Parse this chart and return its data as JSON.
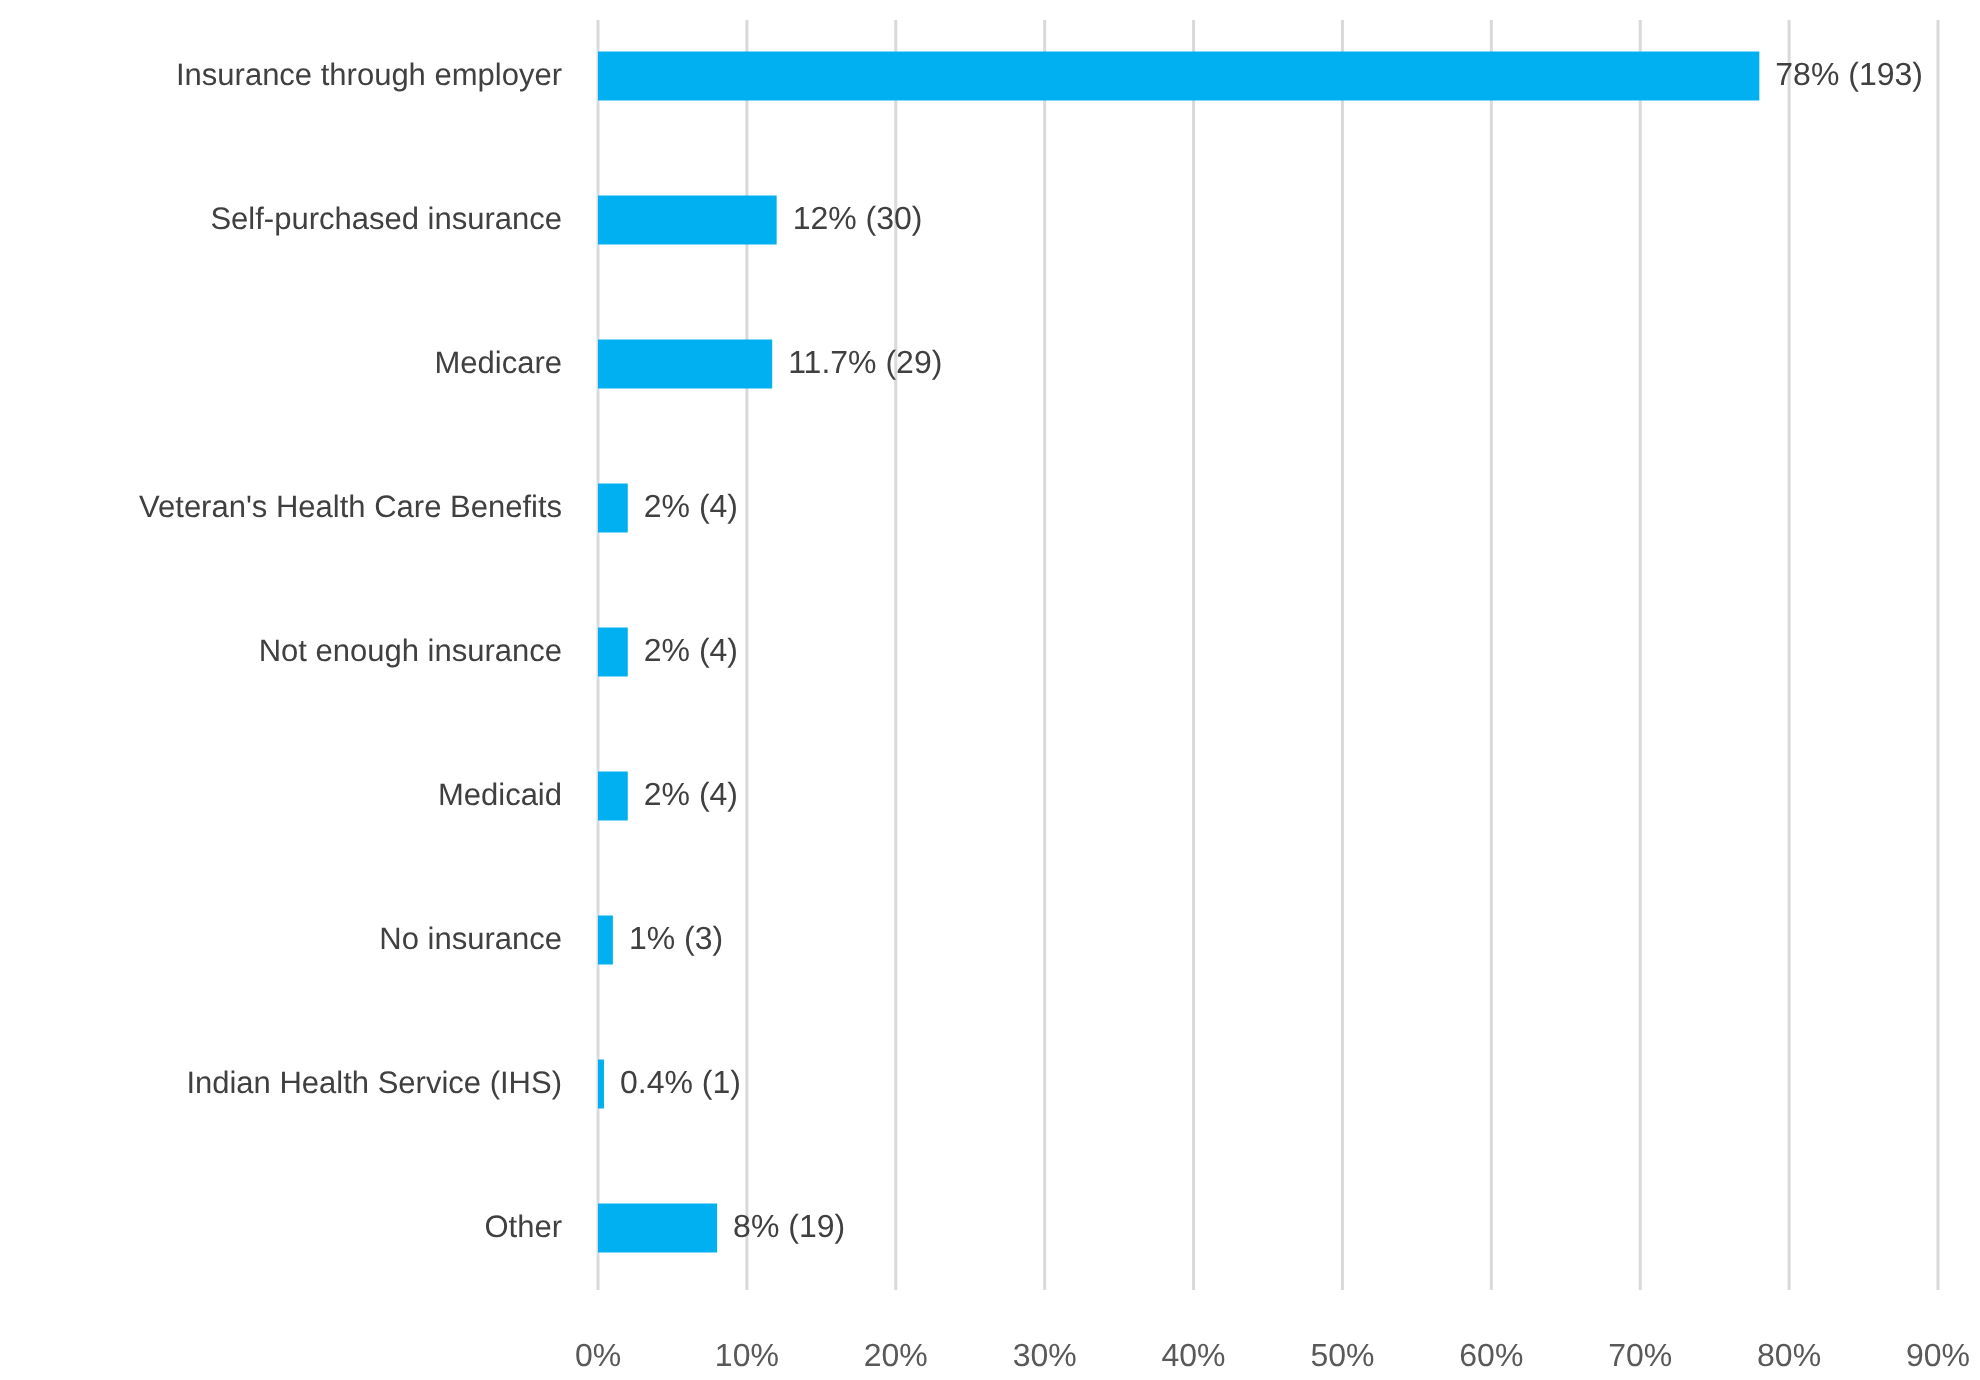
{
  "chart_data": {
    "type": "bar",
    "orientation": "horizontal",
    "categories": [
      "Insurance through employer",
      "Self-purchased insurance",
      "Medicare",
      "Veteran's Health Care Benefits",
      "Not enough insurance",
      "Medicaid",
      "No insurance",
      "Indian Health Service (IHS)",
      "Other"
    ],
    "values": [
      78,
      12,
      11.7,
      2,
      2,
      2,
      1,
      0.4,
      8
    ],
    "value_labels": [
      "78% (193)",
      "12% (30)",
      "11.7% (29)",
      "2% (4)",
      "2% (4)",
      "2% (4)",
      "1% (3)",
      "0.4% (1)",
      "8% (19)"
    ],
    "color": "#00b0f0",
    "xlim": [
      0,
      90
    ],
    "xticks": [
      {
        "value": 0,
        "label": "0%"
      },
      {
        "value": 10,
        "label": "10%"
      },
      {
        "value": 20,
        "label": "20%"
      },
      {
        "value": 30,
        "label": "30%"
      },
      {
        "value": 40,
        "label": "40%"
      },
      {
        "value": 50,
        "label": "50%"
      },
      {
        "value": 60,
        "label": "60%"
      },
      {
        "value": 70,
        "label": "70%"
      },
      {
        "value": 80,
        "label": "80%"
      },
      {
        "value": 90,
        "label": "90%"
      }
    ],
    "grid": "x"
  }
}
